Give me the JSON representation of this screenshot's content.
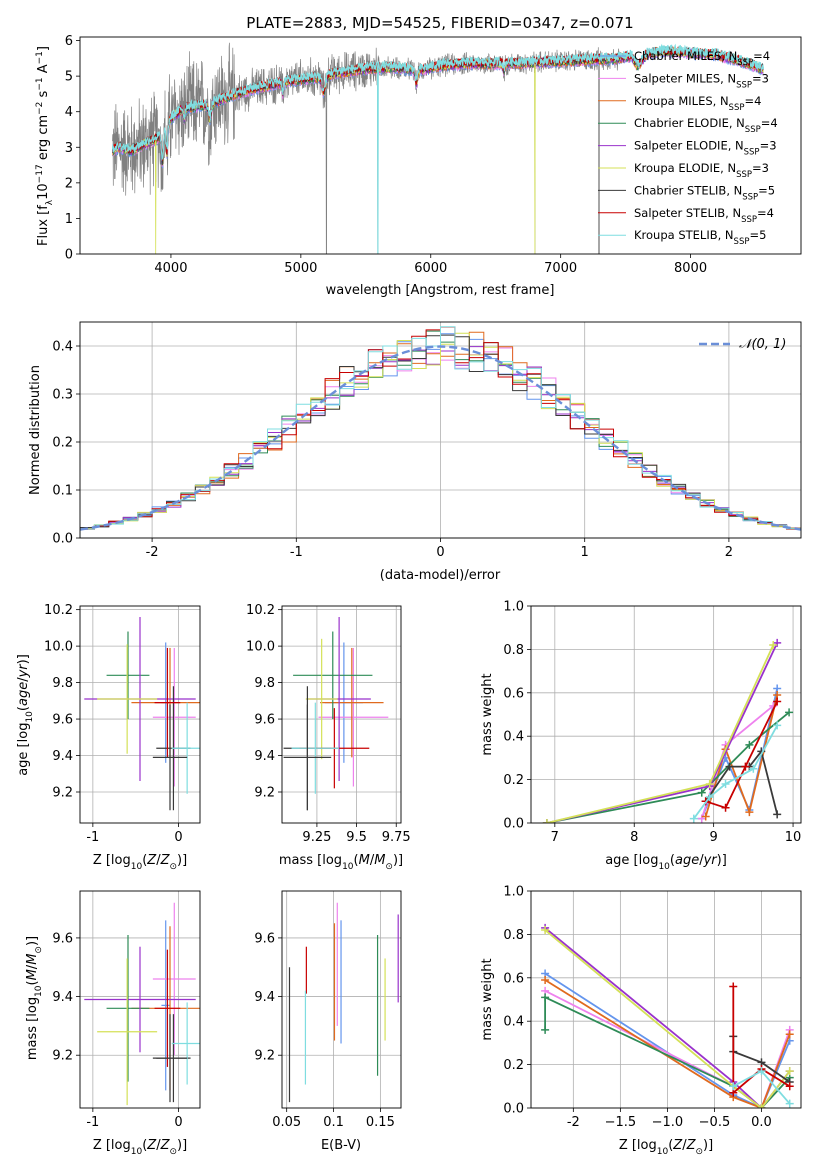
{
  "figure": {
    "colors": {
      "chabrier_miles": "#6495ed",
      "salpeter_miles": "#ee82ee",
      "kroupa_miles": "#e06a1e",
      "chabrier_elodie": "#2e8b57",
      "salpeter_elodie": "#9932cc",
      "kroupa_elodie": "#d4e157",
      "chabrier_stelib": "#3a3a3a",
      "salpeter_stelib": "#c80000",
      "kroupa_stelib": "#7fdde0",
      "spectrum_data": "#808080",
      "normal": "#6b8fd8",
      "grid": "#b0b0b0"
    }
  },
  "chart_data": [
    {
      "id": "spectrum",
      "type": "line",
      "title": "PLATE=2883, MJD=54525, FIBERID=0347, z=0.071",
      "xlabel": "wavelength [Angstrom, rest frame]",
      "ylabel_parts": [
        "Flux [f",
        "λ",
        "10",
        "−17",
        " erg cm",
        "−2",
        " s",
        "−1",
        " A",
        "−1",
        "]"
      ],
      "xlim": [
        3300,
        8850
      ],
      "ylim": [
        0,
        6.1
      ],
      "xticks": [
        4000,
        5000,
        6000,
        7000,
        8000
      ],
      "yticks": [
        0,
        1,
        2,
        3,
        4,
        5,
        6
      ],
      "grid": false,
      "legend_position": "top-right",
      "legend": [
        {
          "label": "Chabrier MILES, N",
          "sub": "SSP",
          "value": "=4",
          "color": "chabrier_miles"
        },
        {
          "label": "Salpeter MILES, N",
          "sub": "SSP",
          "value": "=3",
          "color": "salpeter_miles"
        },
        {
          "label": "Kroupa MILES, N",
          "sub": "SSP",
          "value": "=4",
          "color": "kroupa_miles"
        },
        {
          "label": "Chabrier ELODIE, N",
          "sub": "SSP",
          "value": "=4",
          "color": "chabrier_elodie"
        },
        {
          "label": "Salpeter ELODIE, N",
          "sub": "SSP",
          "value": "=3",
          "color": "salpeter_elodie"
        },
        {
          "label": "Kroupa ELODIE, N",
          "sub": "SSP",
          "value": "=3",
          "color": "kroupa_elodie"
        },
        {
          "label": "Chabrier STELIB, N",
          "sub": "SSP",
          "value": "=5",
          "color": "chabrier_stelib"
        },
        {
          "label": "Salpeter STELIB, N",
          "sub": "SSP",
          "value": "=4",
          "color": "salpeter_stelib"
        },
        {
          "label": "Kroupa STELIB, N",
          "sub": "SSP",
          "value": "=5",
          "color": "kroupa_stelib"
        }
      ],
      "continuum_anchors": {
        "wavelength": [
          3550,
          3600,
          3700,
          3800,
          3900,
          4000,
          4100,
          4300,
          4500,
          4700,
          4900,
          5100,
          5300,
          5500,
          5700,
          5900,
          6100,
          6300,
          6600,
          6900,
          7200,
          7450
        ],
        "flux": [
          2.9,
          3.0,
          2.9,
          3.1,
          3.25,
          3.8,
          4.1,
          4.2,
          4.5,
          4.7,
          4.85,
          4.95,
          5.1,
          5.2,
          5.25,
          5.15,
          5.3,
          5.35,
          5.35,
          5.4,
          5.45,
          5.5
        ]
      },
      "model_extension": {
        "wavelength": [
          7450,
          7600,
          7800,
          8000,
          8200,
          8400,
          8560
        ],
        "flux": [
          5.5,
          5.6,
          5.7,
          5.65,
          5.6,
          5.4,
          5.2
        ]
      },
      "data_range": [
        3550,
        7450
      ],
      "model_range": [
        3550,
        8560
      ]
    },
    {
      "id": "residuals",
      "type": "histogram",
      "xlabel": "(data-model)/error",
      "ylabel": "Normed distribution",
      "xlim": [
        -2.5,
        2.5
      ],
      "ylim": [
        0,
        0.45
      ],
      "xticks": [
        -2,
        -1,
        0,
        1,
        2
      ],
      "yticks": [
        0.0,
        0.1,
        0.2,
        0.3,
        0.4
      ],
      "grid": true,
      "legend_position": "top-right",
      "legend": [
        {
          "label": "𝒩(0, 1)",
          "color": "normal",
          "style": "dashed"
        }
      ],
      "bin_width": 0.1
    },
    {
      "id": "age_vs_Z",
      "type": "errorbar",
      "xlabel": "Z [log10(Z/Z⊙)]",
      "ylabel": "age  [log10(age/yr)]",
      "xlim": [
        -1.15,
        0.25
      ],
      "ylim": [
        9.03,
        10.22
      ],
      "xticks": [
        -1,
        0
      ],
      "yticks": [
        9.2,
        9.4,
        9.6,
        9.8,
        10.0,
        10.2
      ],
      "grid": true,
      "points": [
        {
          "model": "chabrier_miles",
          "x": -0.15,
          "xerr": 0.05,
          "y": 9.69,
          "yerr": 0.33
        },
        {
          "model": "salpeter_miles",
          "x": -0.05,
          "xerr": 0.25,
          "y": 9.61,
          "yerr": 0.38
        },
        {
          "model": "kroupa_miles",
          "x": -0.1,
          "xerr": 0.45,
          "y": 9.69,
          "yerr": 0.3
        },
        {
          "model": "chabrier_elodie",
          "x": -0.59,
          "xerr": 0.25,
          "y": 9.84,
          "yerr": 0.24
        },
        {
          "model": "salpeter_elodie",
          "x": -0.45,
          "xerr": 0.65,
          "y": 9.71,
          "yerr": 0.45
        },
        {
          "model": "kroupa_elodie",
          "x": -0.6,
          "xerr": 0.35,
          "y": 9.71,
          "yerr": 0.3
        },
        {
          "model": "chabrier_stelib",
          "x": -0.06,
          "xerr": 0.2,
          "y": 9.44,
          "yerr": 0.34
        },
        {
          "model": "salpeter_stelib",
          "x": -0.13,
          "xerr": 0.15,
          "y": 9.69,
          "yerr": 0.3
        },
        {
          "model": "kroupa_stelib",
          "x": 0.1,
          "xerr": 0.18,
          "y": 9.44,
          "yerr": 0.25
        },
        {
          "model": "chabrier_stelib",
          "x": -0.1,
          "xerr": 0.2,
          "y": 9.39,
          "yerr": 0.29
        }
      ]
    },
    {
      "id": "age_vs_mass",
      "type": "errorbar",
      "xlabel": "mass [log10(M/M⊙)]",
      "ylabel": "",
      "xlim": [
        9.03,
        9.78
      ],
      "ylim": [
        9.03,
        10.22
      ],
      "xticks": [
        9.25,
        9.5,
        9.75
      ],
      "yticks": [
        9.2,
        9.4,
        9.6,
        9.8,
        10.0,
        10.2
      ],
      "grid": true,
      "points": [
        {
          "model": "chabrier_miles",
          "x": 9.42,
          "xerr": 0.12,
          "y": 9.69,
          "yerr": 0.33
        },
        {
          "model": "salpeter_miles",
          "x": 9.48,
          "xerr": 0.22,
          "y": 9.61,
          "yerr": 0.38
        },
        {
          "model": "kroupa_miles",
          "x": 9.47,
          "xerr": 0.2,
          "y": 9.69,
          "yerr": 0.3
        },
        {
          "model": "chabrier_elodie",
          "x": 9.35,
          "xerr": 0.25,
          "y": 9.84,
          "yerr": 0.24
        },
        {
          "model": "salpeter_elodie",
          "x": 9.39,
          "xerr": 0.2,
          "y": 9.71,
          "yerr": 0.45
        },
        {
          "model": "kroupa_elodie",
          "x": 9.28,
          "xerr": 0.1,
          "y": 9.71,
          "yerr": 0.33
        },
        {
          "model": "chabrier_stelib",
          "x": 9.19,
          "xerr": 0.15,
          "y": 9.44,
          "yerr": 0.34
        },
        {
          "model": "salpeter_stelib",
          "x": 9.36,
          "xerr": 0.22,
          "y": 9.44,
          "yerr": 0.22
        },
        {
          "model": "kroupa_stelib",
          "x": 9.24,
          "xerr": 0.15,
          "y": 9.44,
          "yerr": 0.25
        },
        {
          "model": "chabrier_stelib",
          "x": 9.19,
          "xerr": 0.15,
          "y": 9.39,
          "yerr": 0.29
        }
      ]
    },
    {
      "id": "weight_vs_age",
      "type": "line",
      "xlabel": "age  [log10(age/yr)]",
      "ylabel": "mass weight",
      "xlim": [
        6.7,
        10.1
      ],
      "ylim": [
        0,
        1.0
      ],
      "xticks": [
        7,
        8,
        9,
        10
      ],
      "yticks": [
        0.0,
        0.2,
        0.4,
        0.6,
        0.8,
        1.0
      ],
      "grid": true,
      "series": [
        {
          "model": "chabrier_miles",
          "x": [
            8.85,
            9.15,
            9.45,
            9.8
          ],
          "y": [
            0.02,
            0.3,
            0.06,
            0.62
          ]
        },
        {
          "model": "salpeter_miles",
          "x": [
            8.85,
            9.15,
            9.75
          ],
          "y": [
            0.02,
            0.36,
            0.54
          ]
        },
        {
          "model": "kroupa_miles",
          "x": [
            8.9,
            9.15,
            9.45,
            9.8
          ],
          "y": [
            0.03,
            0.34,
            0.05,
            0.59
          ]
        },
        {
          "model": "chabrier_elodie",
          "x": [
            6.9,
            8.85,
            9.45,
            9.95
          ],
          "y": [
            0.0,
            0.14,
            0.36,
            0.51
          ]
        },
        {
          "model": "salpeter_elodie",
          "x": [
            6.9,
            8.95,
            9.8
          ],
          "y": [
            0.0,
            0.17,
            0.83
          ]
        },
        {
          "model": "kroupa_elodie",
          "x": [
            6.9,
            8.95,
            9.75
          ],
          "y": [
            0.0,
            0.18,
            0.82
          ]
        },
        {
          "model": "chabrier_stelib",
          "x": [
            8.9,
            9.2,
            9.45,
            9.6,
            9.8
          ],
          "y": [
            0.1,
            0.26,
            0.26,
            0.33,
            0.04
          ]
        },
        {
          "model": "salpeter_stelib",
          "x": [
            8.9,
            9.15,
            9.4,
            9.8
          ],
          "y": [
            0.1,
            0.07,
            0.26,
            0.56
          ]
        },
        {
          "model": "kroupa_stelib",
          "x": [
            8.75,
            8.95,
            9.15,
            9.5,
            9.8
          ],
          "y": [
            0.02,
            0.12,
            0.18,
            0.25,
            0.45
          ]
        }
      ]
    },
    {
      "id": "mass_vs_Z",
      "type": "errorbar",
      "xlabel": "Z [log10(Z/Z⊙)]",
      "ylabel": "mass [log10(M/M⊙)]",
      "xlim": [
        -1.15,
        0.25
      ],
      "ylim": [
        9.02,
        9.76
      ],
      "xticks": [
        -1,
        0
      ],
      "yticks": [
        9.2,
        9.4,
        9.6
      ],
      "grid": true,
      "points": [
        {
          "model": "chabrier_miles",
          "x": -0.15,
          "xerr": 0.05,
          "y": 9.37,
          "yerr": 0.29
        },
        {
          "model": "salpeter_miles",
          "x": -0.05,
          "xerr": 0.25,
          "y": 9.46,
          "yerr": 0.26
        },
        {
          "model": "kroupa_miles",
          "x": -0.1,
          "xerr": 0.45,
          "y": 9.36,
          "yerr": 0.28
        },
        {
          "model": "chabrier_elodie",
          "x": -0.59,
          "xerr": 0.25,
          "y": 9.36,
          "yerr": 0.25
        },
        {
          "model": "salpeter_elodie",
          "x": -0.45,
          "xerr": 0.65,
          "y": 9.39,
          "yerr": 0.18
        },
        {
          "model": "kroupa_elodie",
          "x": -0.6,
          "xerr": 0.35,
          "y": 9.28,
          "yerr": 0.25
        },
        {
          "model": "chabrier_stelib",
          "x": -0.06,
          "xerr": 0.2,
          "y": 9.19,
          "yerr": 0.15
        },
        {
          "model": "salpeter_stelib",
          "x": -0.13,
          "xerr": 0.15,
          "y": 9.36,
          "yerr": 0.2
        },
        {
          "model": "kroupa_stelib",
          "x": 0.1,
          "xerr": 0.18,
          "y": 9.24,
          "yerr": 0.14
        },
        {
          "model": "chabrier_stelib",
          "x": -0.1,
          "xerr": 0.2,
          "y": 9.19,
          "yerr": 0.15
        }
      ]
    },
    {
      "id": "mass_vs_ebv",
      "type": "errorbar",
      "xlabel": "E(B-V)",
      "ylabel": "",
      "xlim": [
        0.045,
        0.172
      ],
      "ylim": [
        9.02,
        9.76
      ],
      "xticks": [
        0.05,
        0.1,
        0.15
      ],
      "yticks": [
        9.2,
        9.4,
        9.6
      ],
      "grid": true,
      "points": [
        {
          "model": "chabrier_miles",
          "x": 0.108,
          "y": 9.45,
          "yerr": 0.21
        },
        {
          "model": "salpeter_miles",
          "x": 0.104,
          "y": 9.51,
          "yerr": 0.21
        },
        {
          "model": "kroupa_miles",
          "x": 0.101,
          "y": 9.45,
          "yerr": 0.2
        },
        {
          "model": "chabrier_elodie",
          "x": 0.147,
          "y": 9.37,
          "yerr": 0.24
        },
        {
          "model": "salpeter_elodie",
          "x": 0.169,
          "y": 9.53,
          "yerr": 0.15
        },
        {
          "model": "kroupa_elodie",
          "x": 0.155,
          "y": 9.39,
          "yerr": 0.14
        },
        {
          "model": "chabrier_stelib",
          "x": 0.053,
          "y": 9.27,
          "yerr": 0.23
        },
        {
          "model": "salpeter_stelib",
          "x": 0.071,
          "y": 9.49,
          "yerr": 0.08
        },
        {
          "model": "kroupa_stelib",
          "x": 0.07,
          "y": 9.26,
          "yerr": 0.16
        }
      ]
    },
    {
      "id": "weight_vs_Z",
      "type": "line",
      "xlabel": "Z [log10(Z/Z⊙)]",
      "ylabel": "mass weight",
      "xlim": [
        -2.45,
        0.42
      ],
      "ylim": [
        0,
        1.0
      ],
      "xticks": [
        -2.0,
        -1.5,
        -1.0,
        -0.5,
        0.0
      ],
      "yticks": [
        0.0,
        0.2,
        0.4,
        0.6,
        0.8,
        1.0
      ],
      "grid": true,
      "series": [
        {
          "model": "chabrier_miles",
          "x": [
            -2.3,
            -0.3,
            0.0,
            0.3
          ],
          "y": [
            0.62,
            0.06,
            0.0,
            0.31
          ]
        },
        {
          "model": "salpeter_miles",
          "x": [
            -2.3,
            -0.3,
            0.0,
            0.3
          ],
          "y": [
            0.54,
            0.1,
            0.0,
            0.36
          ]
        },
        {
          "model": "kroupa_miles",
          "x": [
            -2.3,
            -0.3,
            0.0,
            0.3
          ],
          "y": [
            0.59,
            0.05,
            0.0,
            0.34
          ]
        },
        {
          "model": "chabrier_elodie",
          "x": [
            -2.3,
            -2.3,
            -0.3,
            0.0,
            0.3
          ],
          "y": [
            0.36,
            0.51,
            0.1,
            0.0,
            0.14
          ]
        },
        {
          "model": "salpeter_elodie",
          "x": [
            -2.3,
            -0.3,
            0.0,
            0.3
          ],
          "y": [
            0.83,
            0.12,
            0.0,
            0.17
          ]
        },
        {
          "model": "kroupa_elodie",
          "x": [
            -2.3,
            -0.3,
            0.0,
            0.3
          ],
          "y": [
            0.82,
            0.1,
            0.0,
            0.17
          ]
        },
        {
          "model": "chabrier_stelib",
          "x": [
            -0.3,
            -0.3,
            0.0,
            0.3
          ],
          "y": [
            0.33,
            0.26,
            0.21,
            0.12
          ]
        },
        {
          "model": "salpeter_stelib",
          "x": [
            -0.3,
            -0.3,
            0.0,
            0.3
          ],
          "y": [
            0.56,
            0.07,
            0.18,
            0.1
          ]
        },
        {
          "model": "kroupa_stelib",
          "x": [
            -0.3,
            0.0,
            0.3
          ],
          "y": [
            0.1,
            0.17,
            0.02
          ]
        }
      ]
    }
  ]
}
